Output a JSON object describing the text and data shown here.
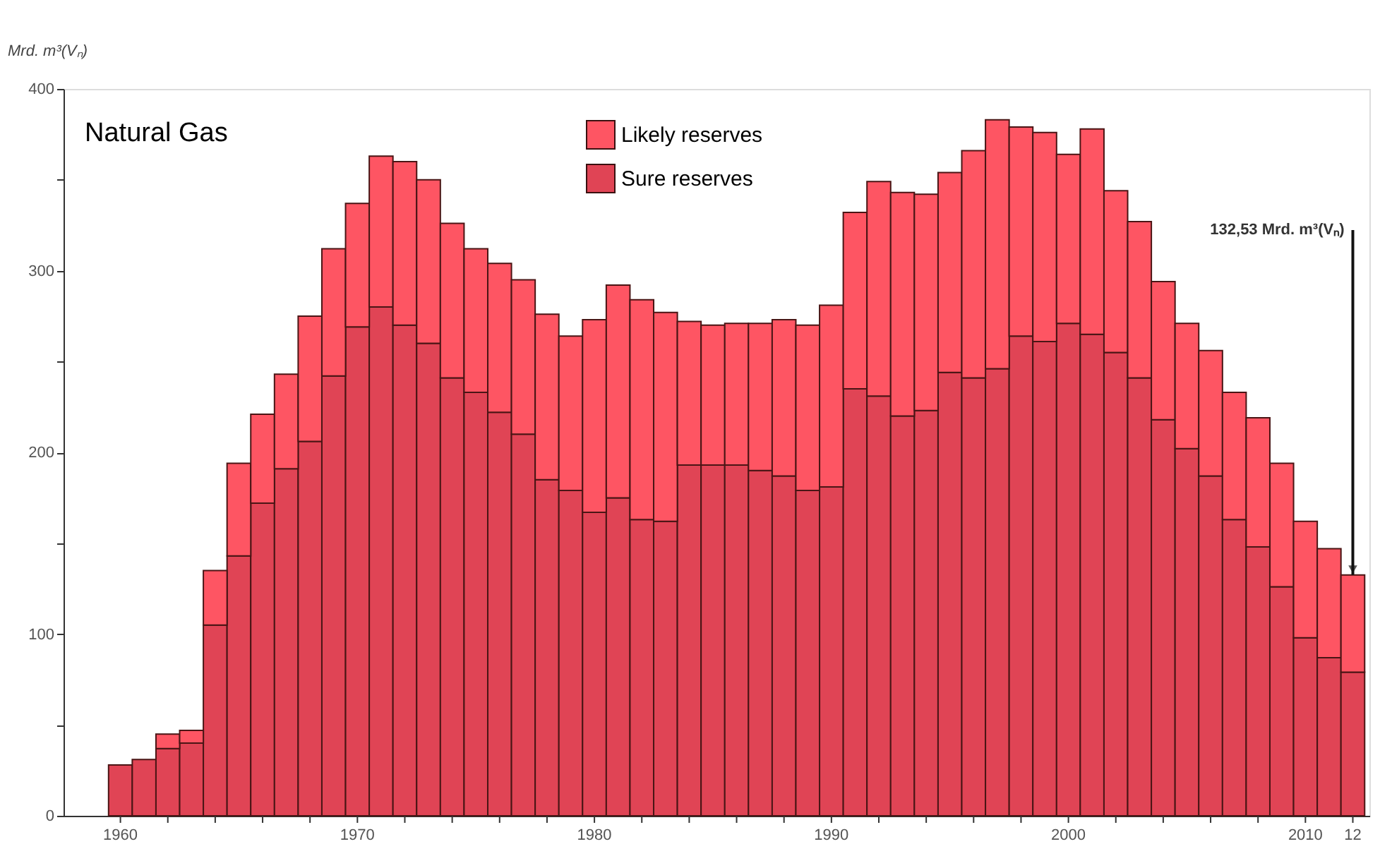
{
  "chart_data": {
    "type": "bar",
    "title": "Natural Gas",
    "ylabel": "Mrd. m³(Vₙ)",
    "stacked": true,
    "x": [
      1960,
      1961,
      1962,
      1963,
      1964,
      1965,
      1966,
      1967,
      1968,
      1969,
      1970,
      1971,
      1972,
      1973,
      1974,
      1975,
      1976,
      1977,
      1978,
      1979,
      1980,
      1981,
      1982,
      1983,
      1984,
      1985,
      1986,
      1987,
      1988,
      1989,
      1990,
      1991,
      1992,
      1993,
      1994,
      1995,
      1996,
      1997,
      1998,
      1999,
      2000,
      2001,
      2002,
      2003,
      2004,
      2005,
      2006,
      2007,
      2008,
      2009,
      2010,
      2011,
      2012
    ],
    "series": [
      {
        "name": "Sure reserves",
        "color": "#e04455",
        "values": [
          28,
          31,
          37,
          40,
          105,
          143,
          172,
          191,
          206,
          242,
          269,
          280,
          270,
          260,
          241,
          233,
          222,
          210,
          185,
          179,
          167,
          175,
          163,
          162,
          193,
          193,
          193,
          190,
          187,
          179,
          181,
          235,
          231,
          220,
          223,
          244,
          241,
          246,
          264,
          261,
          271,
          265,
          255,
          241,
          218,
          202,
          187,
          163,
          148,
          126,
          98,
          87,
          79
        ]
      },
      {
        "name": "Likely reserves",
        "color": "#fe5563",
        "values": [
          null,
          null,
          8,
          7,
          30,
          51,
          49,
          52,
          69,
          70,
          68,
          83,
          90,
          90,
          85,
          79,
          82,
          85,
          91,
          85,
          106,
          117,
          121,
          115,
          79,
          77,
          78,
          81,
          86,
          91,
          100,
          97,
          118,
          123,
          119,
          110,
          125,
          137,
          115,
          115,
          93,
          113,
          89,
          86,
          76,
          69,
          69,
          70,
          71,
          68,
          64,
          60,
          53.5
        ]
      }
    ],
    "xlim": [
      1957.6,
      2012.7
    ],
    "xticks": [
      1960,
      {
        "value": 1962,
        "label": null
      },
      {
        "value": 1964,
        "label": null
      },
      {
        "value": 1966,
        "label": null
      },
      {
        "value": 1968,
        "label": null
      },
      1970,
      {
        "value": 1972,
        "label": null
      },
      {
        "value": 1974,
        "label": null
      },
      {
        "value": 1976,
        "label": null
      },
      {
        "value": 1978,
        "label": null
      },
      1980,
      {
        "value": 1982,
        "label": null
      },
      {
        "value": 1984,
        "label": null
      },
      {
        "value": 1986,
        "label": null
      },
      {
        "value": 1988,
        "label": null
      },
      1990,
      {
        "value": 1992,
        "label": null
      },
      {
        "value": 1994,
        "label": null
      },
      {
        "value": 1996,
        "label": null
      },
      {
        "value": 1998,
        "label": null
      },
      2000,
      {
        "value": 2002,
        "label": null
      },
      {
        "value": 2004,
        "label": null
      },
      {
        "value": 2006,
        "label": null
      },
      {
        "value": 2008,
        "label": null
      },
      2010,
      {
        "value": 2012,
        "label": "12"
      }
    ],
    "ylim": [
      0,
      400
    ],
    "yticks": [
      0,
      {
        "value": 50,
        "label": null
      },
      100,
      {
        "value": 150,
        "label": null
      },
      200,
      {
        "value": 250,
        "label": null
      },
      300,
      {
        "value": 350,
        "label": null
      },
      400
    ],
    "annotations": [
      {
        "text": "132,53 Mrd. m³(Vₙ)",
        "x": 2012,
        "y": 132.53
      }
    ],
    "legend": "top",
    "grid": false
  }
}
